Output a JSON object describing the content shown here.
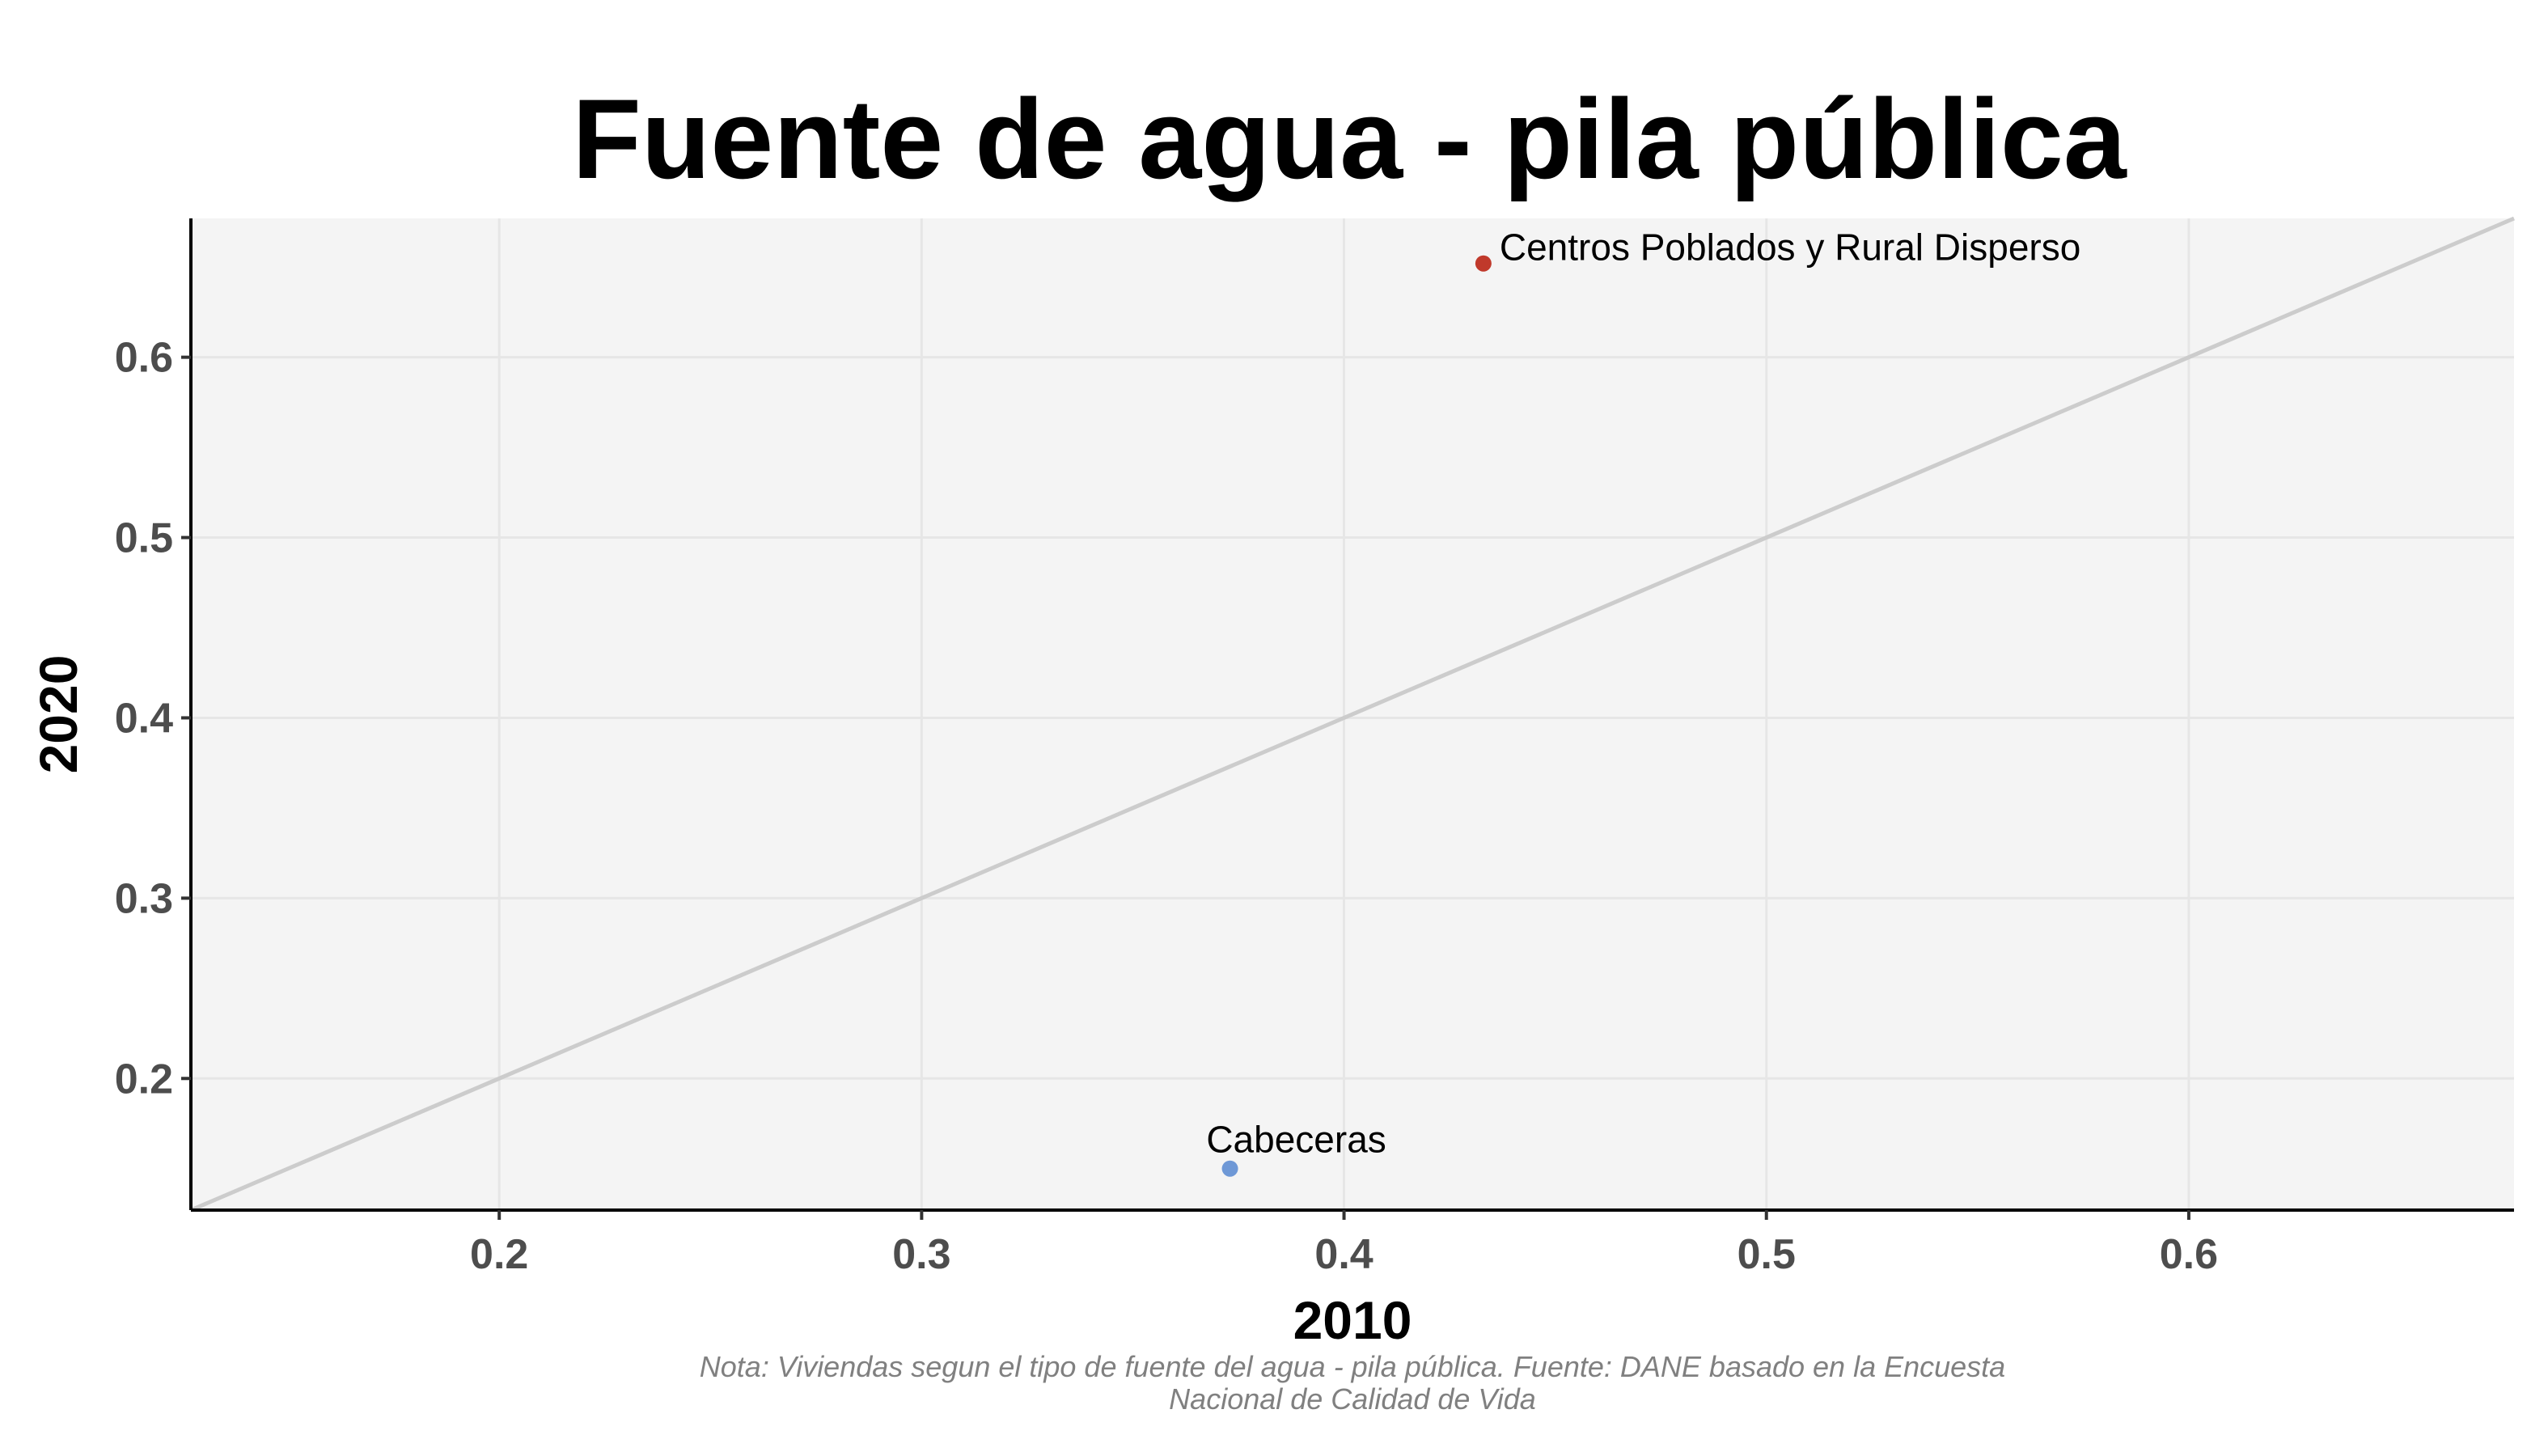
{
  "chart_data": {
    "type": "scatter",
    "title": "Fuente de agua - pila pública",
    "xlabel": "2010",
    "ylabel": "2020",
    "xlim": [
      0.127,
      0.677
    ],
    "ylim": [
      0.127,
      0.677
    ],
    "x_ticks": [
      0.2,
      0.3,
      0.4,
      0.5,
      0.6
    ],
    "y_ticks": [
      0.2,
      0.3,
      0.4,
      0.5,
      0.6
    ],
    "x_tick_labels": [
      "0.2",
      "0.3",
      "0.4",
      "0.5",
      "0.6"
    ],
    "y_tick_labels": [
      "0.2",
      "0.3",
      "0.4",
      "0.5",
      "0.6"
    ],
    "grid": true,
    "reference_line": "y = x",
    "points": [
      {
        "label": "Cabeceras",
        "x": 0.373,
        "y": 0.15,
        "color": "#6e98d6"
      },
      {
        "label": "Centros Poblados y Rural Disperso",
        "x": 0.433,
        "y": 0.652,
        "color": "#c0392b"
      }
    ],
    "caption_lines": [
      "Nota: Viviendas segun el tipo de fuente del agua - pila pública. Fuente: DANE basado en la Encuesta",
      "Nacional de Calidad de Vida"
    ]
  },
  "colors": {
    "panel_background": "#f4f4f4",
    "grid": "#e6e6e6",
    "reference_line": "#cccccc",
    "axis": "#000000"
  }
}
